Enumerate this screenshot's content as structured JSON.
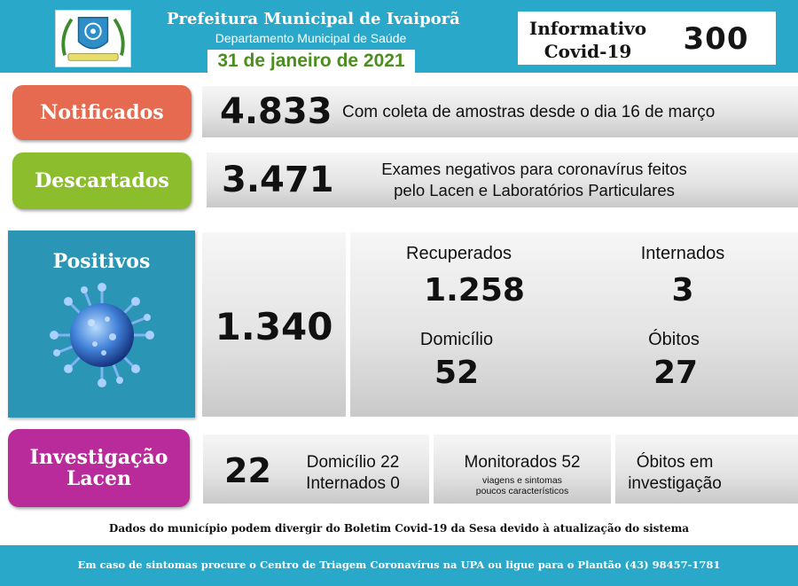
{
  "header": {
    "title": "Prefeitura Municipal de Ivaiporã",
    "subtitle": "Departamento Municipal de Saúde",
    "date": "31 de janeiro de 2021",
    "bulletin_label": "Informativo Covid-19",
    "bulletin_number": "300",
    "logo_icon": "municipal-coat-of-arms-icon"
  },
  "notificados": {
    "label": "Notificados",
    "value": "4.833",
    "description": "Com coleta de amostras desde o dia 16 de março"
  },
  "descartados": {
    "label": "Descartados",
    "value": "3.471",
    "description_line1": "Exames negativos para coronavírus feitos",
    "description_line2": "pelo Lacen e Laboratórios Particulares"
  },
  "positivos": {
    "label": "Positivos",
    "icon": "coronavirus-icon",
    "value": "1.340",
    "recuperados_label": "Recuperados",
    "recuperados_value": "1.258",
    "internados_label": "Internados",
    "internados_value": "3",
    "domicilio_label": "Domicílio",
    "domicilio_value": "52",
    "obitos_label": "Óbitos",
    "obitos_value": "27"
  },
  "investigacao": {
    "label_line1": "Investigação",
    "label_line2": "Lacen",
    "value": "22",
    "domicilio": "Domicílio 22",
    "internados": "Internados 0",
    "monitorados": "Monitorados 52",
    "monitorados_note_line1": "viagens e sintomas",
    "monitorados_note_line2": "poucos característicos",
    "obitos_line1": "Óbitos em",
    "obitos_line2": "investigação"
  },
  "disclaimer": "Dados do município podem divergir do Boletim Covid-19 da Sesa devido à atualização do sistema",
  "footer": "Em caso de sintomas procure o Centro de Triagem Coronavírus na UPA ou ligue para o Plantão (43) 98457-1781",
  "colors": {
    "header_blue": "#29a8c9",
    "notificados": "#e56a4f",
    "descartados": "#8bbd2d",
    "positivos": "#2b95b6",
    "investigacao": "#b92b9a",
    "date_green": "#4b8e1f"
  }
}
